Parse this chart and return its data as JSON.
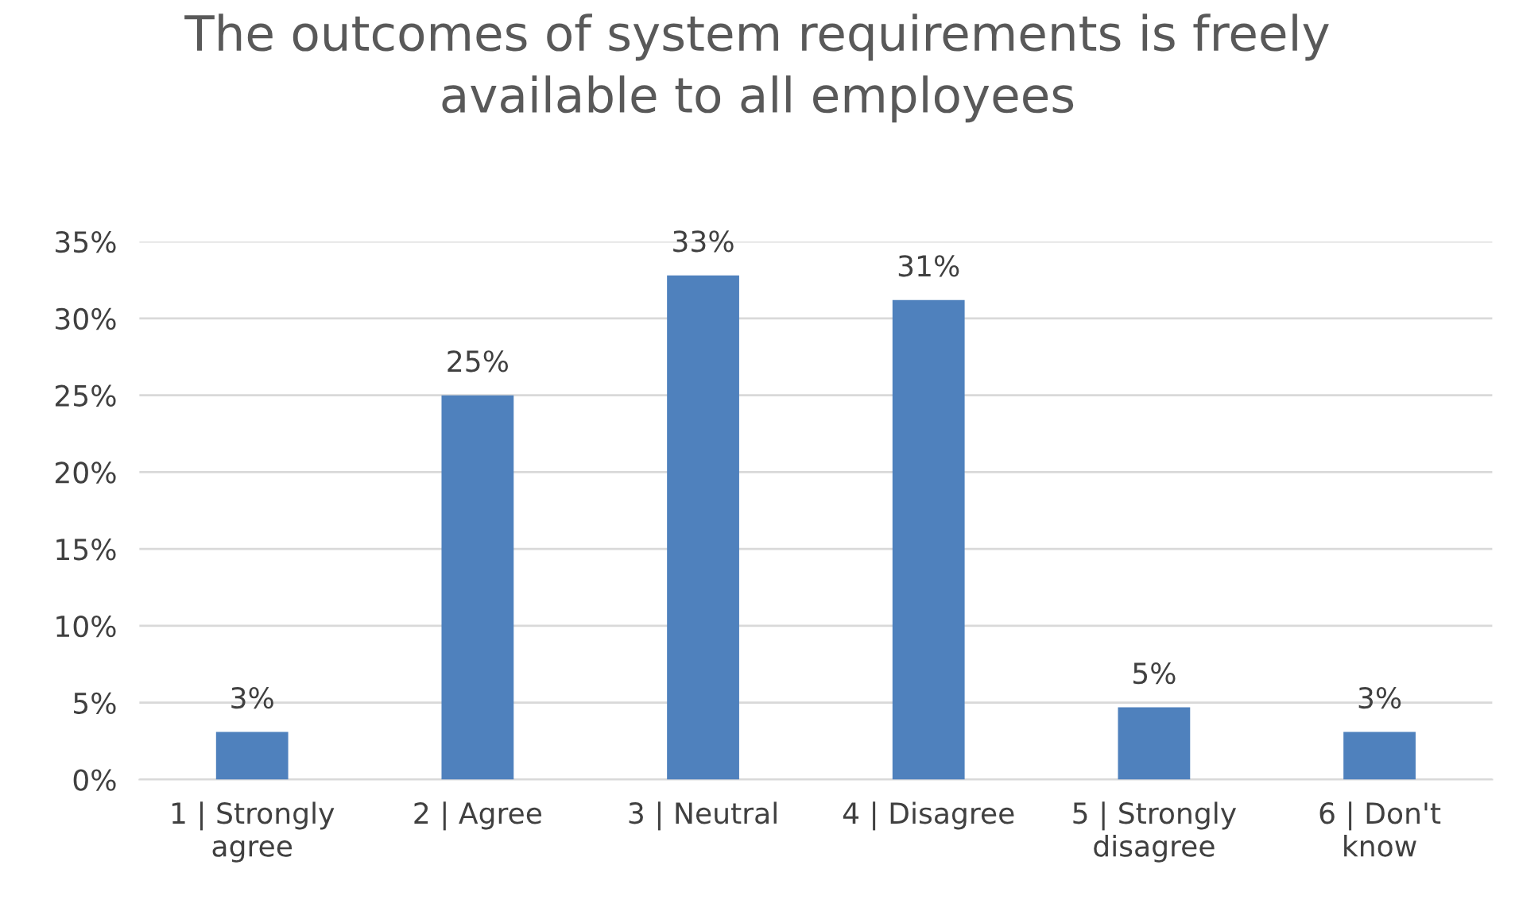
{
  "chart_data": {
    "type": "bar",
    "title": "The outcomes of system requirements is freely\navailable to all employees",
    "categories": [
      "1 | Strongly\nagree",
      "2 | Agree",
      "3 | Neutral",
      "4 | Disagree",
      "5 | Strongly\ndisagree",
      "6 | Don't\nknow"
    ],
    "values": [
      3.1,
      25,
      32.8,
      31.2,
      4.7,
      3.1
    ],
    "value_labels": [
      "3%",
      "25%",
      "33%",
      "31%",
      "5%",
      "3%"
    ],
    "color": "#4f81bd",
    "ylim": [
      0,
      35
    ],
    "yticks": [
      {
        "value": 0,
        "label": "0%"
      },
      {
        "value": 5,
        "label": "5%"
      },
      {
        "value": 10,
        "label": "10%"
      },
      {
        "value": 15,
        "label": "15%"
      },
      {
        "value": 20,
        "label": "20%"
      },
      {
        "value": 25,
        "label": "25%"
      },
      {
        "value": 30,
        "label": "30%"
      },
      {
        "value": 35,
        "label": "35%"
      }
    ],
    "grid": "y"
  }
}
